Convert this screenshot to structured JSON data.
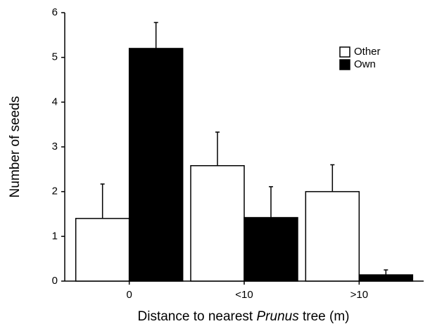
{
  "chart_data": {
    "type": "bar",
    "y_label": "Number of seeds",
    "x_label": {
      "before": "Distance to nearest ",
      "italic": "Prunus",
      "after": " tree (m)"
    },
    "categories": [
      "0",
      "<10",
      ">10"
    ],
    "series": [
      {
        "name": "Other",
        "color": "#ffffff",
        "values": [
          1.4,
          2.58,
          2.0
        ],
        "errors": [
          0.77,
          0.75,
          0.6
        ]
      },
      {
        "name": "Own",
        "color": "#000000",
        "values": [
          5.2,
          1.42,
          0.14
        ],
        "errors": [
          0.58,
          0.69,
          0.11
        ]
      }
    ],
    "ylim": [
      0,
      6
    ],
    "yticks": [
      0,
      1,
      2,
      3,
      4,
      5,
      6
    ],
    "legend": "upper right"
  }
}
